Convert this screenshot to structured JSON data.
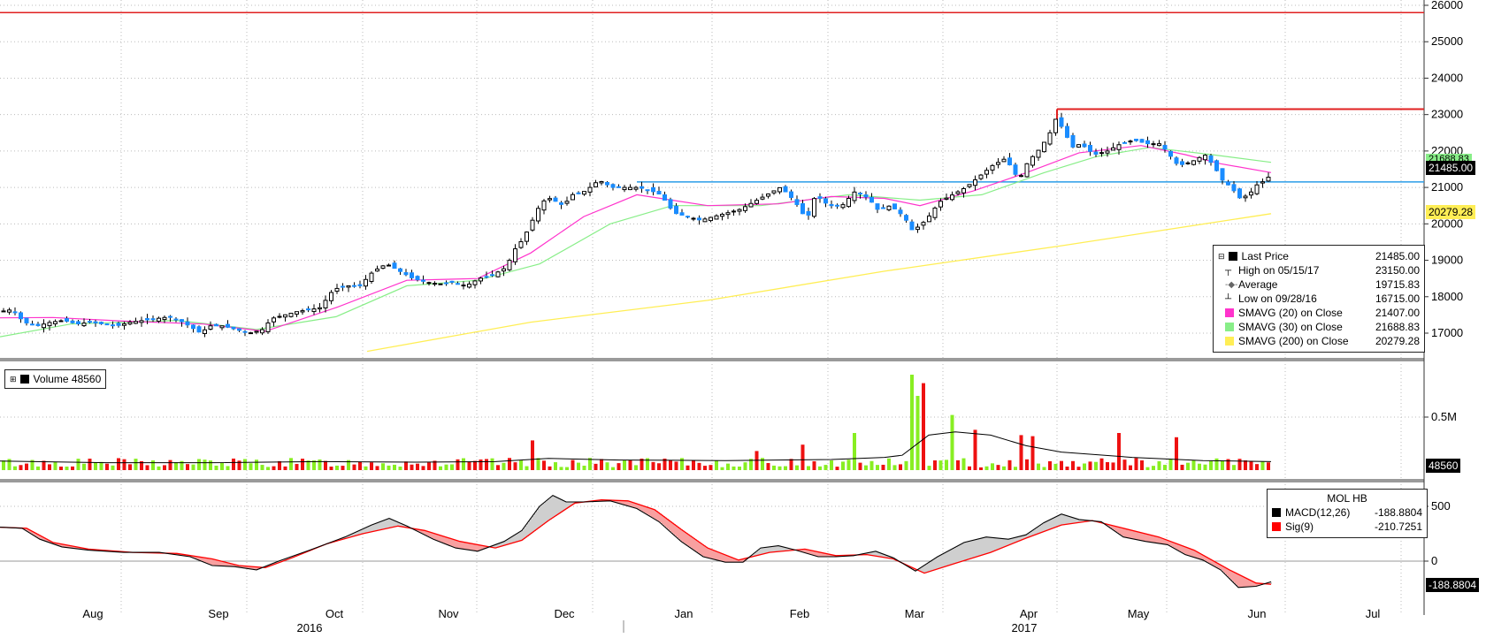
{
  "chart_data": [
    {
      "type": "candlestick",
      "title": "",
      "ylim": [
        16500,
        26000
      ],
      "y_ticks": [
        17000,
        18000,
        19000,
        20000,
        21000,
        22000,
        23000,
        24000,
        25000,
        26000
      ],
      "x_months": [
        "Aug",
        "Sep",
        "Oct",
        "Nov",
        "Dec",
        "Jan",
        "Feb",
        "Mar",
        "Apr",
        "May",
        "Jun",
        "Jul"
      ],
      "x_years": [
        "2016",
        "2017"
      ],
      "close_path": [
        [
          0,
          17600
        ],
        [
          12,
          17650
        ],
        [
          25,
          17300
        ],
        [
          40,
          17200
        ],
        [
          55,
          17300
        ],
        [
          70,
          17350
        ],
        [
          85,
          17250
        ],
        [
          100,
          17300
        ],
        [
          115,
          17250
        ],
        [
          130,
          17200
        ],
        [
          145,
          17300
        ],
        [
          160,
          17350
        ],
        [
          175,
          17400
        ],
        [
          190,
          17450
        ],
        [
          205,
          17300
        ],
        [
          215,
          17150
        ],
        [
          225,
          17000
        ],
        [
          235,
          17200
        ],
        [
          250,
          17200
        ],
        [
          265,
          17100
        ],
        [
          280,
          17000
        ],
        [
          295,
          17100
        ],
        [
          305,
          17400
        ],
        [
          320,
          17500
        ],
        [
          335,
          17600
        ],
        [
          350,
          17650
        ],
        [
          360,
          17700
        ],
        [
          375,
          18200
        ],
        [
          390,
          18300
        ],
        [
          405,
          18300
        ],
        [
          420,
          18700
        ],
        [
          435,
          18900
        ],
        [
          450,
          18700
        ],
        [
          465,
          18500
        ],
        [
          480,
          18400
        ],
        [
          495,
          18350
        ],
        [
          510,
          18400
        ],
        [
          525,
          18300
        ],
        [
          540,
          18500
        ],
        [
          555,
          18600
        ],
        [
          570,
          18800
        ],
        [
          580,
          19300
        ],
        [
          590,
          19600
        ],
        [
          600,
          20100
        ],
        [
          610,
          20600
        ],
        [
          620,
          20700
        ],
        [
          635,
          20500
        ],
        [
          645,
          20800
        ],
        [
          660,
          20900
        ],
        [
          675,
          21200
        ],
        [
          690,
          21000
        ],
        [
          705,
          21000
        ],
        [
          720,
          21000
        ],
        [
          735,
          20900
        ],
        [
          745,
          20800
        ],
        [
          760,
          20300
        ],
        [
          775,
          20200
        ],
        [
          790,
          20100
        ],
        [
          805,
          20200
        ],
        [
          820,
          20300
        ],
        [
          835,
          20400
        ],
        [
          850,
          20600
        ],
        [
          865,
          20800
        ],
        [
          880,
          21000
        ],
        [
          890,
          20800
        ],
        [
          900,
          20500
        ],
        [
          910,
          20100
        ],
        [
          920,
          20800
        ],
        [
          935,
          20500
        ],
        [
          950,
          20500
        ],
        [
          965,
          20900
        ],
        [
          980,
          20700
        ],
        [
          990,
          20400
        ],
        [
          1005,
          20500
        ],
        [
          1020,
          20200
        ],
        [
          1030,
          19800
        ],
        [
          1045,
          20100
        ],
        [
          1060,
          20600
        ],
        [
          1075,
          20800
        ],
        [
          1090,
          21000
        ],
        [
          1105,
          21300
        ],
        [
          1120,
          21600
        ],
        [
          1135,
          21800
        ],
        [
          1150,
          21200
        ],
        [
          1160,
          21700
        ],
        [
          1175,
          22100
        ],
        [
          1185,
          22500
        ],
        [
          1192,
          22900
        ],
        [
          1200,
          22600
        ],
        [
          1210,
          22100
        ],
        [
          1220,
          22200
        ],
        [
          1235,
          21900
        ],
        [
          1250,
          22000
        ],
        [
          1265,
          22200
        ],
        [
          1280,
          22300
        ],
        [
          1295,
          22200
        ],
        [
          1310,
          22200
        ],
        [
          1320,
          21900
        ],
        [
          1330,
          21600
        ],
        [
          1345,
          21700
        ],
        [
          1360,
          21900
        ],
        [
          1370,
          21600
        ],
        [
          1380,
          21200
        ],
        [
          1390,
          21000
        ],
        [
          1400,
          20700
        ],
        [
          1410,
          20800
        ],
        [
          1420,
          21100
        ],
        [
          1430,
          21200
        ],
        [
          1437,
          21485
        ]
      ],
      "series": [
        {
          "name": "Last Price",
          "value": "21485.00"
        },
        {
          "name": "High on 05/15/17",
          "value": "23150.00"
        },
        {
          "name": "Average",
          "value": "19715.83"
        },
        {
          "name": "Low on 09/28/16",
          "value": "16715.00"
        },
        {
          "name": "SMAVG (20) on Close",
          "value": "21407.00",
          "color": "#ff33cc"
        },
        {
          "name": "SMAVG (30) on Close",
          "value": "21688.83",
          "color": "#88ee88"
        },
        {
          "name": "SMAVG (200) on Close",
          "value": "20279.28",
          "color": "#ffee55"
        }
      ],
      "sma20_path": [
        [
          0,
          17420
        ],
        [
          60,
          17430
        ],
        [
          140,
          17330
        ],
        [
          230,
          17250
        ],
        [
          300,
          17050
        ],
        [
          380,
          17700
        ],
        [
          460,
          18450
        ],
        [
          540,
          18500
        ],
        [
          600,
          19200
        ],
        [
          660,
          20200
        ],
        [
          720,
          20800
        ],
        [
          800,
          20500
        ],
        [
          880,
          20550
        ],
        [
          940,
          20750
        ],
        [
          1000,
          20700
        ],
        [
          1040,
          20500
        ],
        [
          1100,
          20900
        ],
        [
          1160,
          21400
        ],
        [
          1220,
          21950
        ],
        [
          1290,
          22150
        ],
        [
          1340,
          21900
        ],
        [
          1380,
          21650
        ],
        [
          1437,
          21407
        ]
      ],
      "sma30_path": [
        [
          0,
          16900
        ],
        [
          80,
          17250
        ],
        [
          200,
          17350
        ],
        [
          290,
          17100
        ],
        [
          380,
          17450
        ],
        [
          460,
          18300
        ],
        [
          540,
          18450
        ],
        [
          610,
          18900
        ],
        [
          690,
          20000
        ],
        [
          760,
          20500
        ],
        [
          860,
          20500
        ],
        [
          960,
          20800
        ],
        [
          1040,
          20650
        ],
        [
          1110,
          20800
        ],
        [
          1180,
          21400
        ],
        [
          1240,
          21850
        ],
        [
          1300,
          22100
        ],
        [
          1370,
          21900
        ],
        [
          1437,
          21689
        ]
      ],
      "sma200_path": [
        [
          415,
          16500
        ],
        [
          600,
          17300
        ],
        [
          800,
          17900
        ],
        [
          1000,
          18700
        ],
        [
          1200,
          19400
        ],
        [
          1437,
          20280
        ]
      ],
      "resistance_line": 21150,
      "top_line": 25800,
      "high_line": {
        "value": 23150,
        "from_x": 1195
      },
      "tags": {
        "last": "21485.00",
        "sma200": "20279.28",
        "sma30": "21688.83"
      },
      "colors": {
        "up": "#1a8cff",
        "down": "#000000",
        "sma20": "#ff33cc",
        "sma30": "#88ee88",
        "sma200": "#ffee55",
        "hline": "#2a9de8",
        "redline": "#e02020"
      }
    },
    {
      "type": "bar",
      "title": "Volume",
      "legend": "Volume 48560",
      "y_ticks": [
        {
          "value": 500000,
          "label": "0.5M"
        }
      ],
      "ylim": [
        0,
        950000
      ],
      "avg_path": [
        [
          0,
          85000
        ],
        [
          120,
          70000
        ],
        [
          240,
          70000
        ],
        [
          360,
          80000
        ],
        [
          470,
          75000
        ],
        [
          560,
          80000
        ],
        [
          620,
          110000
        ],
        [
          700,
          95000
        ],
        [
          820,
          90000
        ],
        [
          940,
          100000
        ],
        [
          1000,
          120000
        ],
        [
          1020,
          140000
        ],
        [
          1050,
          330000
        ],
        [
          1080,
          360000
        ],
        [
          1120,
          330000
        ],
        [
          1160,
          230000
        ],
        [
          1200,
          170000
        ],
        [
          1280,
          120000
        ],
        [
          1360,
          90000
        ],
        [
          1437,
          80000
        ]
      ],
      "spikes": [
        [
          1028,
          900000
        ],
        [
          1034,
          700000
        ],
        [
          1044,
          820000
        ],
        [
          1074,
          520000
        ],
        [
          1100,
          380000
        ],
        [
          962,
          350000
        ],
        [
          1150,
          330000
        ],
        [
          1166,
          320000
        ],
        [
          1266,
          350000
        ],
        [
          1330,
          310000
        ],
        [
          600,
          280000
        ],
        [
          855,
          180000
        ],
        [
          905,
          240000
        ]
      ],
      "last_tag": "48560",
      "colors": {
        "up": "#88ee22",
        "down": "#ee1111",
        "avg": "#000000"
      }
    },
    {
      "type": "line",
      "title": "MOL HB",
      "series": [
        {
          "name": "MACD(12,26)",
          "value": "-188.8804",
          "color": "#000000"
        },
        {
          "name": "Sig(9)",
          "value": "-210.7251",
          "color": "#ff0000"
        }
      ],
      "ylim": [
        -400,
        700
      ],
      "y_ticks": [
        500,
        0
      ],
      "macd_path": [
        [
          0,
          310
        ],
        [
          25,
          300
        ],
        [
          45,
          200
        ],
        [
          70,
          130
        ],
        [
          100,
          100
        ],
        [
          140,
          80
        ],
        [
          180,
          80
        ],
        [
          215,
          40
        ],
        [
          240,
          -40
        ],
        [
          265,
          -50
        ],
        [
          290,
          -80
        ],
        [
          315,
          0
        ],
        [
          350,
          100
        ],
        [
          390,
          220
        ],
        [
          420,
          330
        ],
        [
          440,
          390
        ],
        [
          460,
          320
        ],
        [
          490,
          200
        ],
        [
          515,
          120
        ],
        [
          540,
          90
        ],
        [
          570,
          180
        ],
        [
          590,
          280
        ],
        [
          610,
          500
        ],
        [
          625,
          600
        ],
        [
          640,
          540
        ],
        [
          660,
          540
        ],
        [
          690,
          550
        ],
        [
          720,
          480
        ],
        [
          745,
          360
        ],
        [
          770,
          180
        ],
        [
          795,
          40
        ],
        [
          820,
          -10
        ],
        [
          840,
          -10
        ],
        [
          860,
          120
        ],
        [
          880,
          140
        ],
        [
          900,
          100
        ],
        [
          925,
          40
        ],
        [
          945,
          40
        ],
        [
          965,
          50
        ],
        [
          990,
          90
        ],
        [
          1010,
          30
        ],
        [
          1035,
          -90
        ],
        [
          1060,
          40
        ],
        [
          1090,
          170
        ],
        [
          1115,
          220
        ],
        [
          1140,
          200
        ],
        [
          1160,
          240
        ],
        [
          1180,
          350
        ],
        [
          1200,
          430
        ],
        [
          1220,
          380
        ],
        [
          1245,
          360
        ],
        [
          1270,
          220
        ],
        [
          1295,
          180
        ],
        [
          1320,
          150
        ],
        [
          1340,
          60
        ],
        [
          1360,
          10
        ],
        [
          1380,
          -80
        ],
        [
          1400,
          -240
        ],
        [
          1420,
          -230
        ],
        [
          1437,
          -189
        ]
      ],
      "sig_path": [
        [
          0,
          310
        ],
        [
          30,
          300
        ],
        [
          60,
          170
        ],
        [
          100,
          110
        ],
        [
          150,
          80
        ],
        [
          200,
          70
        ],
        [
          240,
          20
        ],
        [
          270,
          -40
        ],
        [
          300,
          -60
        ],
        [
          330,
          30
        ],
        [
          370,
          160
        ],
        [
          410,
          250
        ],
        [
          450,
          320
        ],
        [
          480,
          280
        ],
        [
          520,
          180
        ],
        [
          560,
          120
        ],
        [
          590,
          190
        ],
        [
          620,
          370
        ],
        [
          650,
          530
        ],
        [
          680,
          560
        ],
        [
          710,
          550
        ],
        [
          740,
          470
        ],
        [
          770,
          290
        ],
        [
          800,
          120
        ],
        [
          835,
          10
        ],
        [
          870,
          80
        ],
        [
          910,
          110
        ],
        [
          945,
          50
        ],
        [
          980,
          60
        ],
        [
          1010,
          20
        ],
        [
          1045,
          -110
        ],
        [
          1080,
          -20
        ],
        [
          1120,
          80
        ],
        [
          1160,
          210
        ],
        [
          1200,
          330
        ],
        [
          1235,
          370
        ],
        [
          1270,
          300
        ],
        [
          1310,
          220
        ],
        [
          1350,
          100
        ],
        [
          1390,
          -80
        ],
        [
          1420,
          -200
        ],
        [
          1437,
          -211
        ]
      ],
      "tag": "-188.8804"
    }
  ]
}
